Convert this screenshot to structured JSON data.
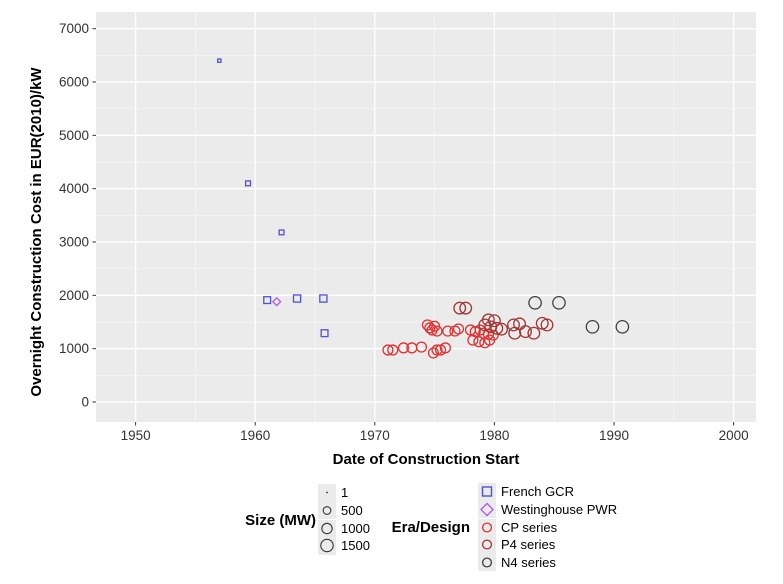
{
  "chart_data": {
    "type": "scatter",
    "title": "",
    "xlabel": "Date of Construction Start",
    "ylabel": "Overnight Construction Cost in EUR(2010)/kW",
    "xlim": [
      1946.7,
      2001.9
    ],
    "ylim": [
      -375,
      7312
    ],
    "x_ticks": [
      1950,
      1960,
      1970,
      1980,
      1990,
      2000
    ],
    "y_ticks": [
      0,
      1000,
      2000,
      3000,
      4000,
      5000,
      6000,
      7000
    ],
    "grid": "major-and-minor",
    "panel_color": "#EBEBEB",
    "grid_color": "#FFFFFF",
    "legend_position": "bottom",
    "point_format": "[year, cost_eur2010_per_kw, size_mw]",
    "series": [
      {
        "name": "French GCR",
        "marker": "square",
        "color": "#4F4FD8",
        "points": [
          [
            1957.0,
            6400,
            70
          ],
          [
            1959.4,
            4100,
            210
          ],
          [
            1962.2,
            3180,
            200
          ],
          [
            1961.0,
            1910,
            480
          ],
          [
            1963.5,
            1940,
            540
          ],
          [
            1965.7,
            1940,
            540
          ],
          [
            1965.8,
            1290,
            480
          ]
        ]
      },
      {
        "name": "Westinghouse PWR",
        "marker": "diamond",
        "color": "#B45FE0",
        "points": [
          [
            1961.8,
            1880,
            305
          ]
        ]
      },
      {
        "name": "CP series",
        "marker": "circle",
        "color": "#E23232",
        "points": [
          [
            1971.1,
            975,
            900
          ],
          [
            1971.5,
            975,
            900
          ],
          [
            1972.4,
            1015,
            900
          ],
          [
            1973.1,
            1015,
            900
          ],
          [
            1973.9,
            1030,
            900
          ],
          [
            1974.9,
            920,
            900
          ],
          [
            1975.2,
            975,
            900
          ],
          [
            1975.5,
            975,
            900
          ],
          [
            1975.9,
            1015,
            900
          ],
          [
            1974.4,
            1445,
            900
          ],
          [
            1974.6,
            1390,
            900
          ],
          [
            1974.8,
            1350,
            900
          ],
          [
            1975.0,
            1420,
            900
          ],
          [
            1975.2,
            1330,
            900
          ],
          [
            1976.1,
            1330,
            900
          ],
          [
            1976.7,
            1330,
            900
          ],
          [
            1977.0,
            1370,
            900
          ],
          [
            1978.0,
            1350,
            900
          ],
          [
            1978.4,
            1320,
            900
          ],
          [
            1978.8,
            1350,
            900
          ],
          [
            1979.1,
            1290,
            900
          ],
          [
            1979.5,
            1270,
            900
          ],
          [
            1979.9,
            1255,
            900
          ],
          [
            1978.2,
            1160,
            900
          ],
          [
            1978.7,
            1130,
            900
          ],
          [
            1979.2,
            1110,
            900
          ],
          [
            1979.6,
            1160,
            900
          ]
        ]
      },
      {
        "name": "P4 series",
        "marker": "circle",
        "color": "#A03636",
        "points": [
          [
            1977.1,
            1760,
            1300
          ],
          [
            1977.6,
            1760,
            1300
          ],
          [
            1979.5,
            1540,
            1300
          ],
          [
            1980.0,
            1525,
            1300
          ],
          [
            1979.2,
            1445,
            1300
          ],
          [
            1979.7,
            1410,
            1300
          ],
          [
            1980.2,
            1380,
            1300
          ],
          [
            1980.6,
            1365,
            1300
          ],
          [
            1981.6,
            1445,
            1300
          ],
          [
            1982.1,
            1465,
            1300
          ],
          [
            1981.7,
            1290,
            1300
          ],
          [
            1982.6,
            1320,
            1300
          ],
          [
            1983.3,
            1290,
            1300
          ],
          [
            1984.0,
            1475,
            1300
          ],
          [
            1984.4,
            1445,
            1300
          ]
        ]
      },
      {
        "name": "N4 series",
        "marker": "circle",
        "color": "#3F3F3F",
        "points": [
          [
            1983.4,
            1860,
            1500
          ],
          [
            1985.4,
            1860,
            1500
          ],
          [
            1988.2,
            1410,
            1500
          ],
          [
            1990.7,
            1410,
            1500
          ]
        ]
      }
    ],
    "size_legend": {
      "title": "Size (MW)",
      "entries": [
        1,
        500,
        1000,
        1500
      ]
    },
    "era_legend": {
      "title": "Era/Design",
      "entries": [
        "French GCR",
        "Westinghouse PWR",
        "CP series",
        "P4 series",
        "N4 series"
      ]
    }
  },
  "axes": {
    "x_title": "Date of Construction Start",
    "y_title": "Overnight Construction Cost in EUR(2010)/kW",
    "x_tick_labels": [
      "1950",
      "1960",
      "1970",
      "1980",
      "1990",
      "2000"
    ],
    "y_tick_labels": [
      "0",
      "1000",
      "2000",
      "3000",
      "4000",
      "5000",
      "6000",
      "7000"
    ]
  },
  "legend": {
    "size_title": "Size (MW)",
    "size_labels": [
      "1",
      "500",
      "1000",
      "1500"
    ],
    "era_title": "Era/Design",
    "era_labels": [
      "French GCR",
      "Westinghouse PWR",
      "CP series",
      "P4 series",
      "N4 series"
    ]
  },
  "colors": {
    "panel": "#EBEBEB",
    "grid_major": "#FFFFFF",
    "tick_text": "#333333",
    "french_gcr": "#4F4FD8",
    "westinghouse_pwr": "#B45FE0",
    "cp_series": "#E23232",
    "p4_series": "#A03636",
    "n4_series": "#3F3F3F"
  }
}
